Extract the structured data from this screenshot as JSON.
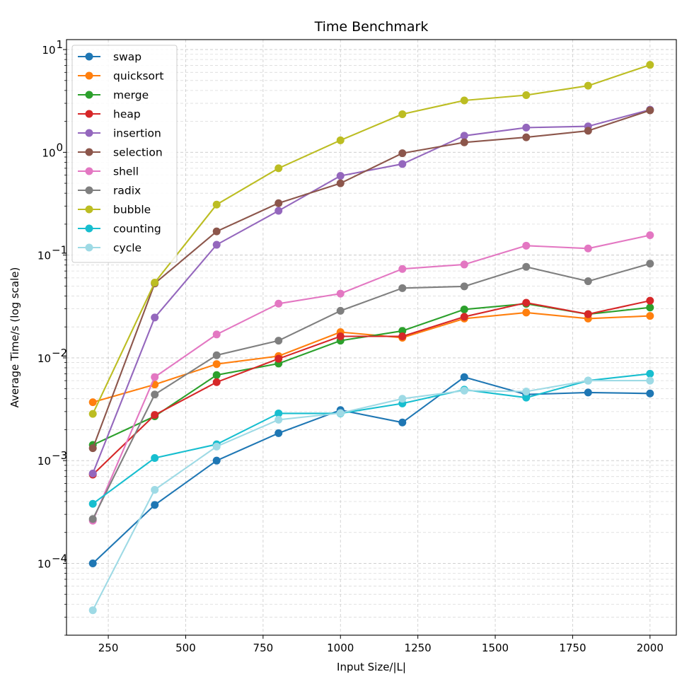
{
  "chart_data": {
    "type": "line",
    "title": "Time Benchmark",
    "xlabel": "Input Size/|L|",
    "ylabel": "Average Time/s (log scale)",
    "xlim": [
      115,
      2085
    ],
    "ylim": [
      2e-05,
      12.5
    ],
    "yscale": "log",
    "grid": true,
    "legend_position": "upper left",
    "x_ticks": [
      {
        "value": 250,
        "label": "250"
      },
      {
        "value": 500,
        "label": "500"
      },
      {
        "value": 750,
        "label": "750"
      },
      {
        "value": 1000,
        "label": "1000"
      },
      {
        "value": 1250,
        "label": "1250"
      },
      {
        "value": 1500,
        "label": "1500"
      },
      {
        "value": 1750,
        "label": "1750"
      },
      {
        "value": 2000,
        "label": "2000"
      }
    ],
    "y_ticks": [
      {
        "value": 0.0001,
        "base": "10",
        "exp": "−4"
      },
      {
        "value": 0.001,
        "base": "10",
        "exp": "−3"
      },
      {
        "value": 0.01,
        "base": "10",
        "exp": "−2"
      },
      {
        "value": 0.1,
        "base": "10",
        "exp": "−1"
      },
      {
        "value": 1,
        "base": "10",
        "exp": "0"
      },
      {
        "value": 10,
        "base": "10",
        "exp": "1"
      }
    ],
    "x": [
      200,
      400,
      600,
      800,
      1000,
      1200,
      1400,
      1600,
      1800,
      2000
    ],
    "series": [
      {
        "name": "swap",
        "color": "#1f77b4",
        "values": [
          0.0001,
          0.00037,
          0.001,
          0.00185,
          0.0031,
          0.00235,
          0.0065,
          0.0044,
          0.0046,
          0.0045
        ]
      },
      {
        "name": "quicksort",
        "color": "#ff7f0e",
        "values": [
          0.0037,
          0.0055,
          0.0087,
          0.0104,
          0.0178,
          0.0157,
          0.0241,
          0.0276,
          0.0241,
          0.0256
        ]
      },
      {
        "name": "merge",
        "color": "#2ca02c",
        "values": [
          0.00142,
          0.0027,
          0.0068,
          0.0088,
          0.0147,
          0.0183,
          0.0296,
          0.0336,
          0.0266,
          0.0309
        ]
      },
      {
        "name": "heap",
        "color": "#d62728",
        "values": [
          0.00073,
          0.00278,
          0.0058,
          0.0098,
          0.0162,
          0.0162,
          0.0251,
          0.0344,
          0.0266,
          0.036
        ]
      },
      {
        "name": "insertion",
        "color": "#9467bd",
        "values": [
          0.00075,
          0.0247,
          0.126,
          0.27,
          0.59,
          0.77,
          1.45,
          1.74,
          1.79,
          2.6
        ]
      },
      {
        "name": "selection",
        "color": "#8c564b",
        "values": [
          0.00132,
          0.053,
          0.17,
          0.32,
          0.5,
          0.98,
          1.25,
          1.4,
          1.62,
          2.56
        ]
      },
      {
        "name": "shell",
        "color": "#e377c2",
        "values": [
          0.00026,
          0.0065,
          0.0169,
          0.0337,
          0.0422,
          0.0733,
          0.081,
          0.1235,
          0.116,
          0.1562
        ]
      },
      {
        "name": "radix",
        "color": "#7f7f7f",
        "values": [
          0.00027,
          0.0044,
          0.0106,
          0.0147,
          0.0287,
          0.0477,
          0.0496,
          0.0768,
          0.0557,
          0.0825
        ]
      },
      {
        "name": "bubble",
        "color": "#bcbd22",
        "values": [
          0.00285,
          0.054,
          0.31,
          0.7,
          1.31,
          2.35,
          3.2,
          3.6,
          4.45,
          7.1
        ]
      },
      {
        "name": "counting",
        "color": "#17becf",
        "values": [
          0.00038,
          0.00106,
          0.00144,
          0.00288,
          0.00288,
          0.0036,
          0.0049,
          0.0041,
          0.006,
          0.007
        ]
      },
      {
        "name": "cycle",
        "color": "#9edae5",
        "values": [
          3.5e-05,
          0.00052,
          0.00137,
          0.0025,
          0.0029,
          0.004,
          0.0048,
          0.0047,
          0.006,
          0.006
        ]
      }
    ]
  }
}
